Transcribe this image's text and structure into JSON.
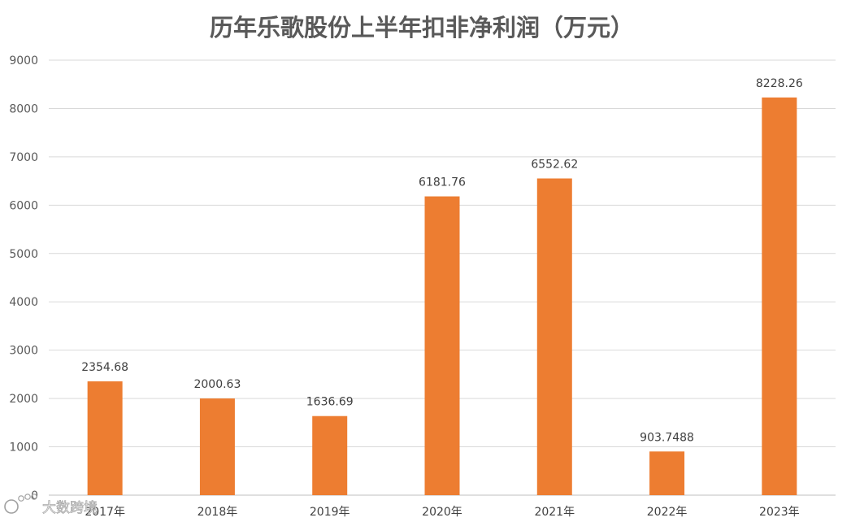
{
  "chart_data": {
    "type": "bar",
    "title": "历年乐歌股份上半年扣非净利润（万元）",
    "categories": [
      "2017年",
      "2018年",
      "2019年",
      "2020年",
      "2021年",
      "2022年",
      "2023年"
    ],
    "values": [
      2354.68,
      2000.63,
      1636.69,
      6181.76,
      6552.62,
      903.7488,
      8228.26
    ],
    "data_labels": [
      "2354.68",
      "2000.63",
      "1636.69",
      "6181.76",
      "6552.62",
      "903.7488",
      "8228.26"
    ],
    "y_ticks": [
      0,
      1000,
      2000,
      3000,
      4000,
      5000,
      6000,
      7000,
      8000,
      9000
    ],
    "ylim": [
      0,
      9000
    ],
    "xlabel": "",
    "ylabel": "",
    "grid": true,
    "legend": "none",
    "bar_color": "#ED7D31"
  },
  "watermark": {
    "text": "大数跨境",
    "icon": "dashu-logo-icon"
  }
}
